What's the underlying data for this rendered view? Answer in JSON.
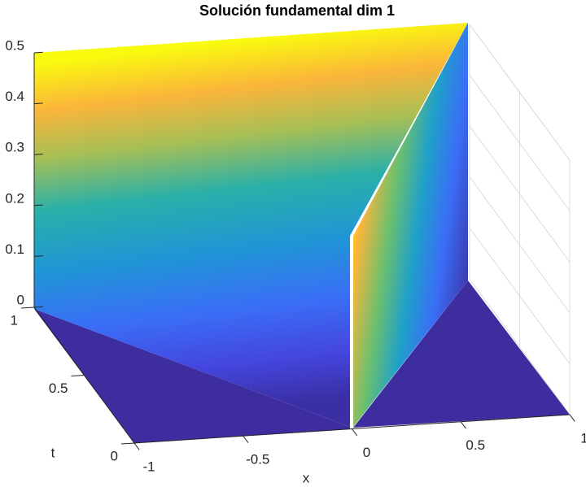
{
  "chart_data": {
    "type": "surface",
    "title": "Solución fundamental dim 1",
    "xlabel": "x",
    "ylabel": "t",
    "xlim": [
      -1,
      1
    ],
    "xticks": [
      -1,
      -0.5,
      0,
      0.5,
      1
    ],
    "ylim": [
      0,
      1
    ],
    "yticks": [
      0,
      0.5,
      1
    ],
    "zlim": [
      0,
      0.5
    ],
    "zticks": [
      0,
      0.1,
      0.2,
      0.3,
      0.4,
      0.5
    ],
    "grid": true
  }
}
